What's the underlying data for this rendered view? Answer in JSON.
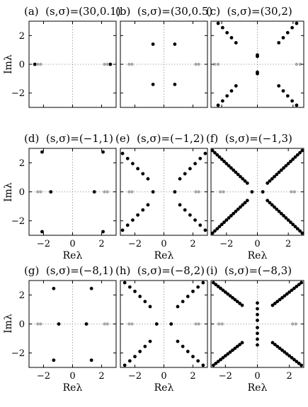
{
  "figure": {
    "ylabel": "Imλ",
    "xlabel": "Reλ"
  },
  "chart_data": [
    {
      "type": "scatter",
      "title": "(a)  (s,σ)=(30,0.1)",
      "xlabel": "",
      "ylabel": "Imλ",
      "xlim": [
        -3,
        3
      ],
      "ylim": [
        -3,
        3
      ],
      "xticks": [
        -2,
        0,
        2
      ],
      "yticks": [
        -2,
        0,
        2
      ],
      "xtick_labels": [
        "",
        "",
        ""
      ],
      "ytick_labels": [
        "−2",
        "0",
        "2"
      ],
      "colors": {
        "spectrum": "#000000",
        "essential": "#a8a8a8"
      },
      "series": [
        {
          "role": "spectrum",
          "x": [
            -2.6,
            2.6
          ],
          "y": [
            0,
            0
          ]
        },
        {
          "role": "essential",
          "x": [
            -2.2,
            -2.4,
            2.2,
            2.4
          ],
          "y": [
            0,
            0,
            0,
            0
          ]
        }
      ]
    },
    {
      "type": "scatter",
      "title": "(b)  (s,σ)=(30,0.5)",
      "xlabel": "",
      "ylabel": "",
      "xlim": [
        -3,
        3
      ],
      "ylim": [
        -3,
        3
      ],
      "xticks": [
        -2,
        0,
        2
      ],
      "yticks": [
        -2,
        0,
        2
      ],
      "xtick_labels": [
        "",
        "",
        ""
      ],
      "ytick_labels": [
        "",
        "",
        ""
      ],
      "colors": {
        "spectrum": "#000000",
        "essential": "#a8a8a8"
      },
      "series": [
        {
          "role": "spectrum",
          "x": [
            -0.75,
            0.75,
            -0.75,
            0.75
          ],
          "y": [
            1.4,
            1.4,
            -1.4,
            -1.4
          ]
        },
        {
          "role": "essential",
          "x": [
            -2.2,
            -2.4,
            2.2,
            2.4
          ],
          "y": [
            0,
            0,
            0,
            0
          ]
        }
      ]
    },
    {
      "type": "scatter",
      "title": "(c)  (s,σ)=(30,2)",
      "xlabel": "",
      "ylabel": "",
      "xlim": [
        -2.6,
        2.6
      ],
      "ylim": [
        -3,
        3
      ],
      "xticks": [
        -2,
        0,
        2
      ],
      "yticks": [
        -2,
        0,
        2
      ],
      "xtick_labels": [
        "",
        "",
        ""
      ],
      "ytick_labels": [
        "",
        "",
        ""
      ],
      "colors": {
        "spectrum": "#000000",
        "essential": "#a8a8a8"
      },
      "series": [
        {
          "role": "spectrum",
          "x": [
            -2.2,
            -1.95,
            -1.7,
            -1.45,
            -1.2,
            1.2,
            1.45,
            1.7,
            1.95,
            2.2,
            -2.2,
            -1.95,
            -1.7,
            -1.45,
            -1.2,
            1.2,
            1.45,
            1.7,
            1.95,
            2.2,
            0,
            0,
            0,
            0
          ],
          "y": [
            2.85,
            2.55,
            2.2,
            1.85,
            1.5,
            1.5,
            1.85,
            2.2,
            2.55,
            2.85,
            -2.85,
            -2.55,
            -2.2,
            -1.85,
            -1.5,
            -1.5,
            -1.85,
            -2.2,
            -2.55,
            -2.85,
            0.55,
            0.65,
            -0.55,
            -0.65
          ]
        },
        {
          "role": "essential",
          "x": [
            -2.2,
            -2.4,
            2.2,
            2.4
          ],
          "y": [
            0,
            0,
            0,
            0
          ]
        }
      ]
    },
    {
      "type": "scatter",
      "title": "(d)  (s,σ)=(−1,1)",
      "xlabel": "Reλ",
      "ylabel": "Imλ",
      "xlim": [
        -3,
        3
      ],
      "ylim": [
        -3,
        3
      ],
      "xticks": [
        -2,
        0,
        2
      ],
      "yticks": [
        -2,
        0,
        2
      ],
      "xtick_labels": [
        "−2",
        "0",
        "2"
      ],
      "ytick_labels": [
        "−2",
        "0",
        "2"
      ],
      "colors": {
        "spectrum": "#000000",
        "essential": "#a8a8a8"
      },
      "series": [
        {
          "role": "spectrum",
          "x": [
            -2.1,
            2.1,
            -2.1,
            2.1,
            -1.5,
            1.5
          ],
          "y": [
            2.75,
            2.75,
            -2.75,
            -2.75,
            0,
            0
          ]
        },
        {
          "role": "essential",
          "x": [
            -2.2,
            -2.4,
            2.2,
            2.4
          ],
          "y": [
            0,
            0,
            0,
            0
          ]
        }
      ]
    },
    {
      "type": "scatter",
      "title": "(e)  (s,σ)=(−1,2)",
      "xlabel": "Reλ",
      "ylabel": "",
      "xlim": [
        -3,
        3
      ],
      "ylim": [
        -3,
        3
      ],
      "xticks": [
        -2,
        0,
        2
      ],
      "yticks": [
        -2,
        0,
        2
      ],
      "xtick_labels": [
        "−2",
        "0",
        "2"
      ],
      "ytick_labels": [
        "",
        "",
        ""
      ],
      "colors": {
        "spectrum": "#000000",
        "essential": "#a8a8a8"
      },
      "series": [
        {
          "role": "spectrum",
          "x": [
            -2.85,
            -2.5,
            -2.15,
            -1.8,
            -1.45,
            -1.1,
            1.1,
            1.45,
            1.8,
            2.15,
            2.5,
            2.85,
            -2.85,
            -2.5,
            -2.15,
            -1.8,
            -1.45,
            -1.1,
            1.1,
            1.45,
            1.8,
            2.15,
            2.5,
            2.85,
            -0.75,
            0.75
          ],
          "y": [
            2.65,
            2.3,
            1.95,
            1.6,
            1.25,
            0.9,
            0.9,
            1.25,
            1.6,
            1.95,
            2.3,
            2.65,
            -2.65,
            -2.3,
            -1.95,
            -1.6,
            -1.25,
            -0.9,
            -0.9,
            -1.25,
            -1.6,
            -1.95,
            -2.3,
            -2.65,
            0,
            0
          ]
        },
        {
          "role": "essential",
          "x": [
            -2.2,
            -2.4,
            2.2,
            2.4
          ],
          "y": [
            0,
            0,
            0,
            0
          ]
        }
      ]
    },
    {
      "type": "scatter",
      "title": "(f)  (s,σ)=(−1,3)",
      "xlabel": "Reλ",
      "ylabel": "",
      "xlim": [
        -3,
        3
      ],
      "ylim": [
        -3,
        3
      ],
      "xticks": [
        -2,
        0,
        2
      ],
      "yticks": [
        -2,
        0,
        2
      ],
      "xtick_labels": [
        "−2",
        "0",
        "2"
      ],
      "ytick_labels": [
        "",
        "",
        ""
      ],
      "colors": {
        "spectrum": "#000000",
        "essential": "#a8a8a8"
      },
      "series": [
        {
          "role": "spectrum",
          "x": [
            -2.9,
            -2.75,
            -2.6,
            -2.45,
            -2.3,
            -2.15,
            -2.0,
            -1.85,
            -1.7,
            -1.55,
            -1.4,
            -1.25,
            -1.1,
            -0.95,
            -0.8,
            -0.65,
            0.65,
            0.8,
            0.95,
            1.1,
            1.25,
            1.4,
            1.55,
            1.7,
            1.85,
            2.0,
            2.15,
            2.3,
            2.45,
            2.6,
            2.75,
            2.9,
            -2.9,
            -2.75,
            -2.6,
            -2.45,
            -2.3,
            -2.15,
            -2.0,
            -1.85,
            -1.7,
            -1.55,
            -1.4,
            -1.25,
            -1.1,
            -0.95,
            -0.8,
            -0.65,
            0.65,
            0.8,
            0.95,
            1.1,
            1.25,
            1.4,
            1.55,
            1.7,
            1.85,
            2.0,
            2.15,
            2.3,
            2.45,
            2.6,
            2.75,
            2.9,
            -0.35,
            0.35
          ],
          "y": [
            2.85,
            2.7,
            2.55,
            2.4,
            2.25,
            2.1,
            1.95,
            1.8,
            1.65,
            1.5,
            1.35,
            1.2,
            1.05,
            0.9,
            0.75,
            0.6,
            0.6,
            0.75,
            0.9,
            1.05,
            1.2,
            1.35,
            1.5,
            1.65,
            1.8,
            1.95,
            2.1,
            2.25,
            2.4,
            2.55,
            2.7,
            2.85,
            -2.85,
            -2.7,
            -2.55,
            -2.4,
            -2.25,
            -2.1,
            -1.95,
            -1.8,
            -1.65,
            -1.5,
            -1.35,
            -1.2,
            -1.05,
            -0.9,
            -0.75,
            -0.6,
            -0.6,
            -0.75,
            -0.9,
            -1.05,
            -1.2,
            -1.35,
            -1.5,
            -1.65,
            -1.8,
            -1.95,
            -2.1,
            -2.25,
            -2.4,
            -2.55,
            -2.7,
            -2.85,
            0,
            0
          ]
        },
        {
          "role": "essential",
          "x": [
            -2.2,
            -2.4,
            2.2,
            2.4
          ],
          "y": [
            0,
            0,
            0,
            0
          ]
        }
      ]
    },
    {
      "type": "scatter",
      "title": "(g)  (s,σ)=(−8,1)",
      "xlabel": "Reλ",
      "ylabel": "Imλ",
      "xlim": [
        -3,
        3
      ],
      "ylim": [
        -3,
        3
      ],
      "xticks": [
        -2,
        0,
        2
      ],
      "yticks": [
        -2,
        0,
        2
      ],
      "xtick_labels": [
        "−2",
        "0",
        "2"
      ],
      "ytick_labels": [
        "−2",
        "0",
        "2"
      ],
      "colors": {
        "spectrum": "#000000",
        "essential": "#a8a8a8"
      },
      "series": [
        {
          "role": "spectrum",
          "x": [
            -1.3,
            1.3,
            -1.3,
            1.3,
            -0.95,
            0.95
          ],
          "y": [
            2.45,
            2.45,
            -2.5,
            -2.5,
            0,
            0
          ]
        },
        {
          "role": "essential",
          "x": [
            -2.2,
            -2.4,
            2.2,
            2.4
          ],
          "y": [
            0,
            0,
            0,
            0
          ]
        }
      ]
    },
    {
      "type": "scatter",
      "title": "(h)  (s,σ)=(−8,2)",
      "xlabel": "Reλ",
      "ylabel": "",
      "xlim": [
        -3,
        3
      ],
      "ylim": [
        -3,
        3
      ],
      "xticks": [
        -2,
        0,
        2
      ],
      "yticks": [
        -2,
        0,
        2
      ],
      "xtick_labels": [
        "−2",
        "0",
        "2"
      ],
      "ytick_labels": [
        "",
        "",
        ""
      ],
      "colors": {
        "spectrum": "#000000",
        "essential": "#a8a8a8"
      },
      "series": [
        {
          "role": "spectrum",
          "x": [
            -2.7,
            -2.35,
            -2.0,
            -1.65,
            -1.3,
            -0.95,
            0.95,
            1.3,
            1.65,
            2.0,
            2.35,
            2.7,
            -2.7,
            -2.35,
            -2.0,
            -1.65,
            -1.3,
            -0.95,
            0.95,
            1.3,
            1.65,
            2.0,
            2.35,
            2.7,
            -0.5,
            0.5
          ],
          "y": [
            2.85,
            2.55,
            2.25,
            1.9,
            1.55,
            1.2,
            1.2,
            1.55,
            1.9,
            2.25,
            2.55,
            2.85,
            -2.85,
            -2.55,
            -2.25,
            -1.9,
            -1.55,
            -1.2,
            -1.2,
            -1.55,
            -1.9,
            -2.25,
            -2.55,
            -2.85,
            0,
            0
          ]
        },
        {
          "role": "essential",
          "x": [
            -2.2,
            -2.4,
            2.2,
            2.4
          ],
          "y": [
            0,
            0,
            0,
            0
          ]
        }
      ]
    },
    {
      "type": "scatter",
      "title": "(i)  (s,σ)=(−8,3)",
      "xlabel": "Reλ",
      "ylabel": "",
      "xlim": [
        -2.9,
        2.9
      ],
      "ylim": [
        -3,
        3
      ],
      "xticks": [
        -2,
        0,
        2
      ],
      "yticks": [
        -2,
        0,
        2
      ],
      "xtick_labels": [
        "−2",
        "0",
        "2"
      ],
      "ytick_labels": [
        "",
        "",
        ""
      ],
      "colors": {
        "spectrum": "#000000",
        "essential": "#a8a8a8"
      },
      "series": [
        {
          "role": "spectrum",
          "x": [
            -2.75,
            -2.6,
            -2.45,
            -2.3,
            -2.15,
            -2.0,
            -1.85,
            -1.7,
            -1.55,
            -1.4,
            -1.25,
            -1.1,
            -0.95,
            0.95,
            1.1,
            1.25,
            1.4,
            1.55,
            1.7,
            1.85,
            2.0,
            2.15,
            2.3,
            2.45,
            2.6,
            2.75,
            -2.75,
            -2.6,
            -2.45,
            -2.3,
            -2.15,
            -2.0,
            -1.85,
            -1.7,
            -1.55,
            -1.4,
            -1.25,
            -1.1,
            -0.95,
            0.95,
            1.1,
            1.25,
            1.4,
            1.55,
            1.7,
            1.85,
            2.0,
            2.15,
            2.3,
            2.45,
            2.6,
            2.75,
            0,
            0,
            0,
            0,
            0,
            0,
            0,
            0
          ],
          "y": [
            2.85,
            2.72,
            2.59,
            2.46,
            2.33,
            2.2,
            2.07,
            1.94,
            1.81,
            1.68,
            1.55,
            1.42,
            1.29,
            1.29,
            1.42,
            1.55,
            1.68,
            1.81,
            1.94,
            2.07,
            2.2,
            2.33,
            2.46,
            2.59,
            2.72,
            2.85,
            -2.85,
            -2.72,
            -2.59,
            -2.46,
            -2.33,
            -2.2,
            -2.07,
            -1.94,
            -1.81,
            -1.68,
            -1.55,
            -1.42,
            -1.29,
            -1.29,
            -1.42,
            -1.55,
            -1.68,
            -1.81,
            -1.94,
            -2.07,
            -2.2,
            -2.33,
            -2.46,
            -2.59,
            -2.72,
            -2.85,
            0.25,
            0.65,
            1.05,
            1.45,
            -0.25,
            -0.65,
            -1.05,
            -1.45
          ]
        },
        {
          "role": "essential",
          "x": [
            -2.2,
            -2.4,
            2.2,
            2.4
          ],
          "y": [
            0,
            0,
            0,
            0
          ]
        }
      ]
    }
  ]
}
